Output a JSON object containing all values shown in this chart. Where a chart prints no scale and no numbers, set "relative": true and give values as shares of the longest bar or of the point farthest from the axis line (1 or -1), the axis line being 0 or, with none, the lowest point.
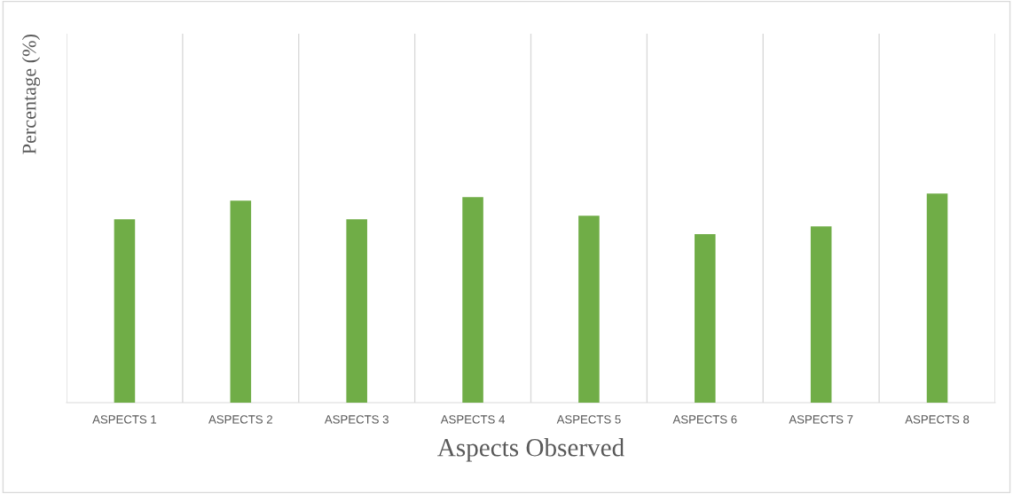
{
  "chart_data": {
    "type": "bar",
    "xlabel": "Aspects Observed",
    "ylabel": "Percentage (%)",
    "categories": [
      "ASPECTS 1",
      "ASPECTS 2",
      "ASPECTS 3",
      "ASPECTS 4",
      "ASPECTS 5",
      "ASPECTS 6",
      "ASPECTS 7",
      "ASPECTS 8"
    ],
    "values": [
      0.877,
      0.966,
      0.877,
      0.983,
      0.894,
      0.805,
      0.843,
      1
    ],
    "color": "#70ad47",
    "relative": true,
    "grid": "x",
    "legend": false
  }
}
